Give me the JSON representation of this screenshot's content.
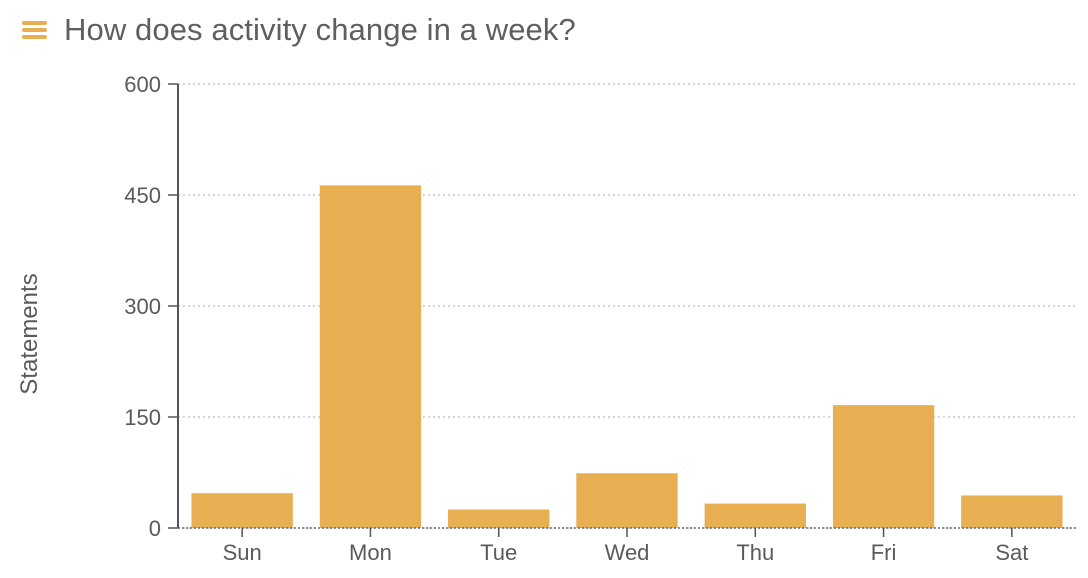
{
  "header": {
    "menu_icon": "hamburger-menu-icon",
    "title": "How does activity change in a week?"
  },
  "colors": {
    "accent": "#e8ae52",
    "bar": "#e8ae52",
    "grid": "#bdbdbd",
    "axis": "#555555",
    "text": "#5a5a5a"
  },
  "chart_data": {
    "type": "bar",
    "categories": [
      "Sun",
      "Mon",
      "Tue",
      "Wed",
      "Thu",
      "Fri",
      "Sat"
    ],
    "values": [
      47,
      463,
      25,
      74,
      33,
      166,
      44
    ],
    "ylabel": "Statements",
    "xlabel": "",
    "ylim": [
      0,
      600
    ],
    "yticks": [
      0,
      150,
      300,
      450,
      600
    ],
    "ytick_labels": [
      "0",
      "150",
      "300",
      "450",
      "600"
    ],
    "grid": true,
    "grid_style": "dotted",
    "legend": "none"
  }
}
